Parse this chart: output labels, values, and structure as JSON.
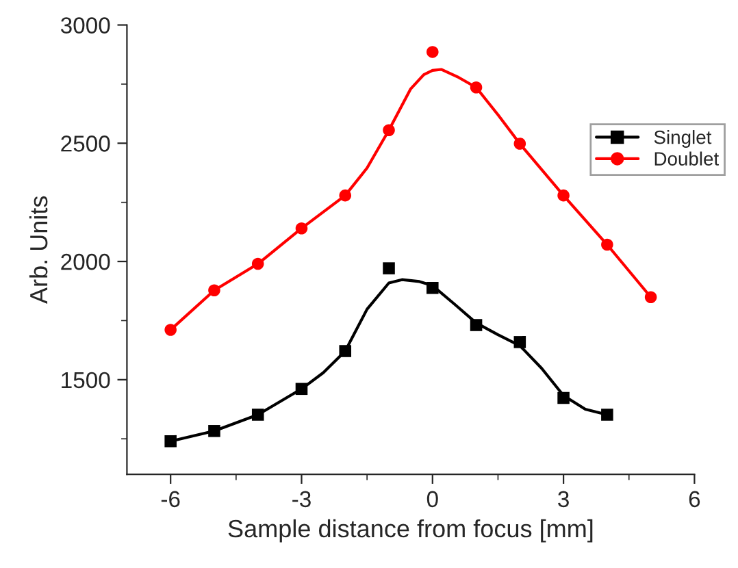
{
  "chart_data": {
    "type": "scatter",
    "xlabel": "Sample distance from focus [mm]",
    "ylabel": "Arb. Units",
    "xlim": [
      -7,
      6
    ],
    "xticks": [
      -6,
      -3,
      0,
      3,
      6
    ],
    "ylim": [
      1100,
      3000
    ],
    "yticks": [
      1500,
      2000,
      2500,
      3000
    ],
    "grid": false,
    "legend": "top right",
    "series": [
      {
        "name": "Singlet",
        "color": "#000000",
        "marker": "square",
        "x": [
          -6,
          -5,
          -4,
          -3,
          -2,
          -1,
          0,
          1,
          2,
          3,
          4
        ],
        "values": [
          1240,
          1283,
          1352,
          1461,
          1621,
          1971,
          1888,
          1731,
          1659,
          1423,
          1352
        ]
      },
      {
        "name": "Doublet",
        "color": "#ff0000",
        "marker": "circle",
        "x": [
          -6,
          -5,
          -4,
          -3,
          -2,
          -1,
          0,
          1,
          2,
          3,
          4,
          5
        ],
        "values": [
          1711,
          1878,
          1990,
          2140,
          2279,
          2555,
          2886,
          2736,
          2498,
          2279,
          2071,
          1849
        ]
      },
      {
        "type": "line",
        "color": "#000000",
        "marker": "none",
        "x": [
          -6,
          -5,
          -4,
          -3,
          -2.5,
          -2,
          -1.5,
          -1,
          -0.7,
          -0.3,
          0,
          0.5,
          1,
          1.5,
          2,
          2.5,
          3,
          3.5,
          4
        ],
        "values": [
          1240,
          1283,
          1352,
          1461,
          1530,
          1621,
          1798,
          1909,
          1923,
          1915,
          1898,
          1820,
          1740,
          1690,
          1644,
          1548,
          1433,
          1375,
          1352
        ]
      },
      {
        "type": "line",
        "color": "#ff0000",
        "marker": "none",
        "x": [
          -6,
          -5,
          -4,
          -3,
          -2,
          -1.5,
          -1,
          -0.5,
          -0.2,
          0,
          0.2,
          0.6,
          1,
          1.5,
          2,
          3,
          4,
          5
        ],
        "values": [
          1711,
          1878,
          1990,
          2140,
          2279,
          2395,
          2555,
          2730,
          2790,
          2808,
          2812,
          2778,
          2736,
          2620,
          2498,
          2279,
          2071,
          1849
        ]
      }
    ]
  }
}
